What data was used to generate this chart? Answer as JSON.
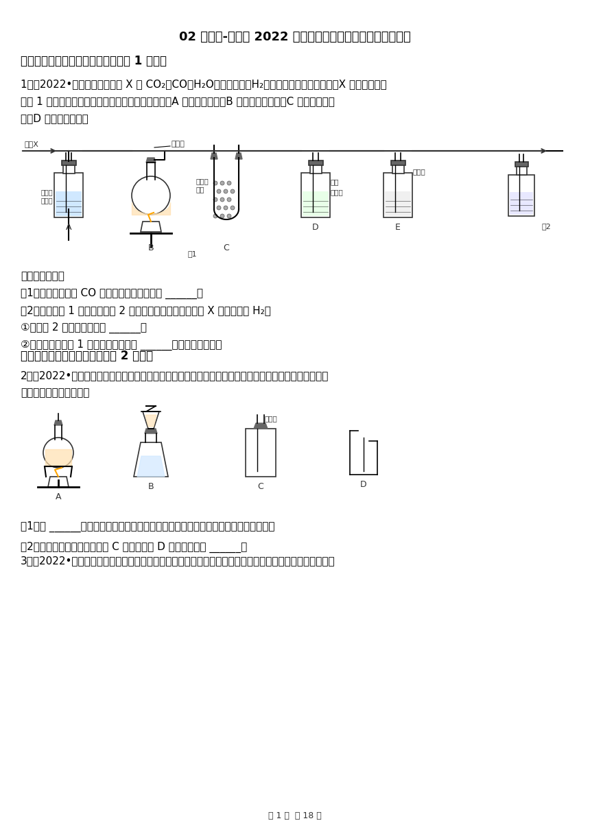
{
  "title": "02 填空题-浙江省 2022 年各市中考化学真题分题型分层汇编",
  "section1_title": "一．常见气体的检验与除杂方法（共 1 小题）",
  "q1_text1": "1．（2022•金华）某混合气体 X 由 CO₂、CO、H₂O（水蒸气）、H₂中的两种或两种以上组成，X 气体依次通过",
  "q1_text2": "如图 1 装置（假定每步反应均完全），现象分别为：A 中溶液变浑浊；B 中固体变为红色；C 中粉末变为蓝",
  "q1_text3": "色；D 中溶液变浑浊。",
  "q1_complete": "完成下列问题：",
  "q1_sub1": "（1）该实验能得出 CO 气体一定存在的证据是 ______；",
  "q1_sub2": "（2）只要在图 1 中加装一个图 2 装置，就能确定原混合气体 X 中是否含有 H₂。",
  "q1_sub2a": "①写出图 2 装置中试剂名称 ______；",
  "q1_sub2b": "②该装置连接在图 1 中哪两个装置之间 ______（用字母表示）。",
  "section2_title": "二．二氧化碳的实验室制法（共 2 小题）",
  "q2_text": "2．（2022•湖州）实验室常用分解高锰酸钾、氯酸钾或过氧化氢的方法制取氧气；常用大理石与稀盐酸反\n应来制取二氧化碳气体。",
  "q2_sub1": "（1）图 ______（填字母）装置既可作为制取氧气也可作为制取二氧化碳的发生装置。",
  "q2_sub2": "（2）实验室收集二氧化碳选用 C 装置而不用 D 装置的原因是 ______。",
  "q3_text": "3．（2022•绍兴）科学是一门以实验为基础的学科。以下是实验室制取、收集、测量气体体积的常用装置。",
  "page_footer": "第 1 页  共 18 页",
  "bg_color": "#ffffff",
  "text_color": "#000000",
  "title_fontsize": 13,
  "body_fontsize": 11,
  "section_fontsize": 12
}
